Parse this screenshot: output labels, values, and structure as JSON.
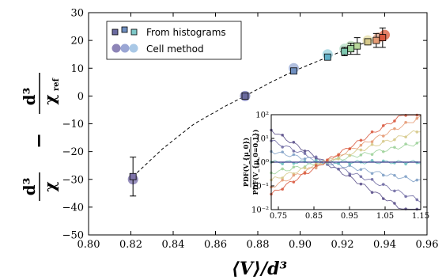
{
  "chart_data": [
    {
      "type": "scatter",
      "xlabel": "⟨V⟩/d³",
      "ylabel_parts": {
        "a_num": "d³",
        "a_den": "χ",
        "minus": "−",
        "b_num": "d³",
        "b_den": "χ",
        "b_sub": "ref"
      },
      "xlim": [
        0.8,
        0.96
      ],
      "ylim": [
        -50,
        30
      ],
      "xticks": [
        "0.80",
        "0.82",
        "0.84",
        "0.86",
        "0.88",
        "0.90",
        "0.92",
        "0.94",
        "0.96"
      ],
      "yticks": [
        "30",
        "20",
        "10",
        "0",
        "−10",
        "−20",
        "−30",
        "−40",
        "−50"
      ],
      "legend": {
        "position": "top-left",
        "entries": [
          "From histograms",
          "Cell method"
        ]
      },
      "series": [
        {
          "name": "From histograms",
          "marker": "square",
          "points": [
            {
              "x": 0.821,
              "y": -29,
              "err": 7,
              "color": "#7e73a8"
            },
            {
              "x": 0.874,
              "y": 0,
              "err": 0,
              "color": "#6a6aa0"
            },
            {
              "x": 0.897,
              "y": 9,
              "err": 0,
              "color": "#6f8fc0"
            },
            {
              "x": 0.913,
              "y": 14,
              "err": 0,
              "color": "#5fb0c8"
            },
            {
              "x": 0.921,
              "y": 16,
              "err": 1.5,
              "color": "#7ec8b0"
            },
            {
              "x": 0.924,
              "y": 17,
              "err": 2,
              "color": "#9dd29a"
            },
            {
              "x": 0.927,
              "y": 18,
              "err": 3,
              "color": "#b8d79a"
            },
            {
              "x": 0.932,
              "y": 19.5,
              "err": 1,
              "color": "#d6c98a"
            },
            {
              "x": 0.936,
              "y": 20,
              "err": 2.5,
              "color": "#e59a74"
            },
            {
              "x": 0.939,
              "y": 21,
              "err": 3.5,
              "color": "#d9593f"
            }
          ]
        },
        {
          "name": "Cell method",
          "marker": "circle",
          "points": [
            {
              "x": 0.821,
              "y": -30,
              "color": "#8d84b7"
            },
            {
              "x": 0.874,
              "y": 0,
              "color": "#8a8cc2"
            },
            {
              "x": 0.897,
              "y": 10,
              "color": "#a8b8dc"
            },
            {
              "x": 0.913,
              "y": 15,
              "color": "#a9d8e2"
            },
            {
              "x": 0.921,
              "y": 17,
              "color": "#bfe3cf"
            },
            {
              "x": 0.924,
              "y": 18,
              "color": "#c9e4c5"
            },
            {
              "x": 0.932,
              "y": 20,
              "color": "#e9e2b2"
            },
            {
              "x": 0.937,
              "y": 21,
              "color": "#f0b79f"
            },
            {
              "x": 0.94,
              "y": 22,
              "color": "#e07256"
            }
          ]
        }
      ],
      "fit_curve": [
        [
          0.821,
          -29
        ],
        [
          0.835,
          -19
        ],
        [
          0.85,
          -10
        ],
        [
          0.865,
          -3.5
        ],
        [
          0.874,
          0
        ],
        [
          0.885,
          4.5
        ],
        [
          0.897,
          9
        ],
        [
          0.905,
          11.5
        ],
        [
          0.913,
          14
        ],
        [
          0.921,
          16.5
        ],
        [
          0.93,
          19
        ],
        [
          0.94,
          21.5
        ]
      ]
    },
    {
      "type": "line",
      "ylabel_num": "PDF(V_{μ_0})",
      "ylabel_den": "PDF(V_{μ_0=0.1})",
      "xlim": [
        0.73,
        1.15
      ],
      "xticks_values": [
        0.75,
        0.85,
        0.95,
        1.05,
        1.15
      ],
      "xticks": [
        "0.75",
        "0.85",
        "0.95",
        "1.05",
        "1.15"
      ],
      "yscale": "log",
      "ylim": [
        0.01,
        100
      ],
      "yticks": [
        "10⁻²",
        "10⁻¹",
        "10⁰",
        "10¹",
        "10²"
      ]
    }
  ]
}
